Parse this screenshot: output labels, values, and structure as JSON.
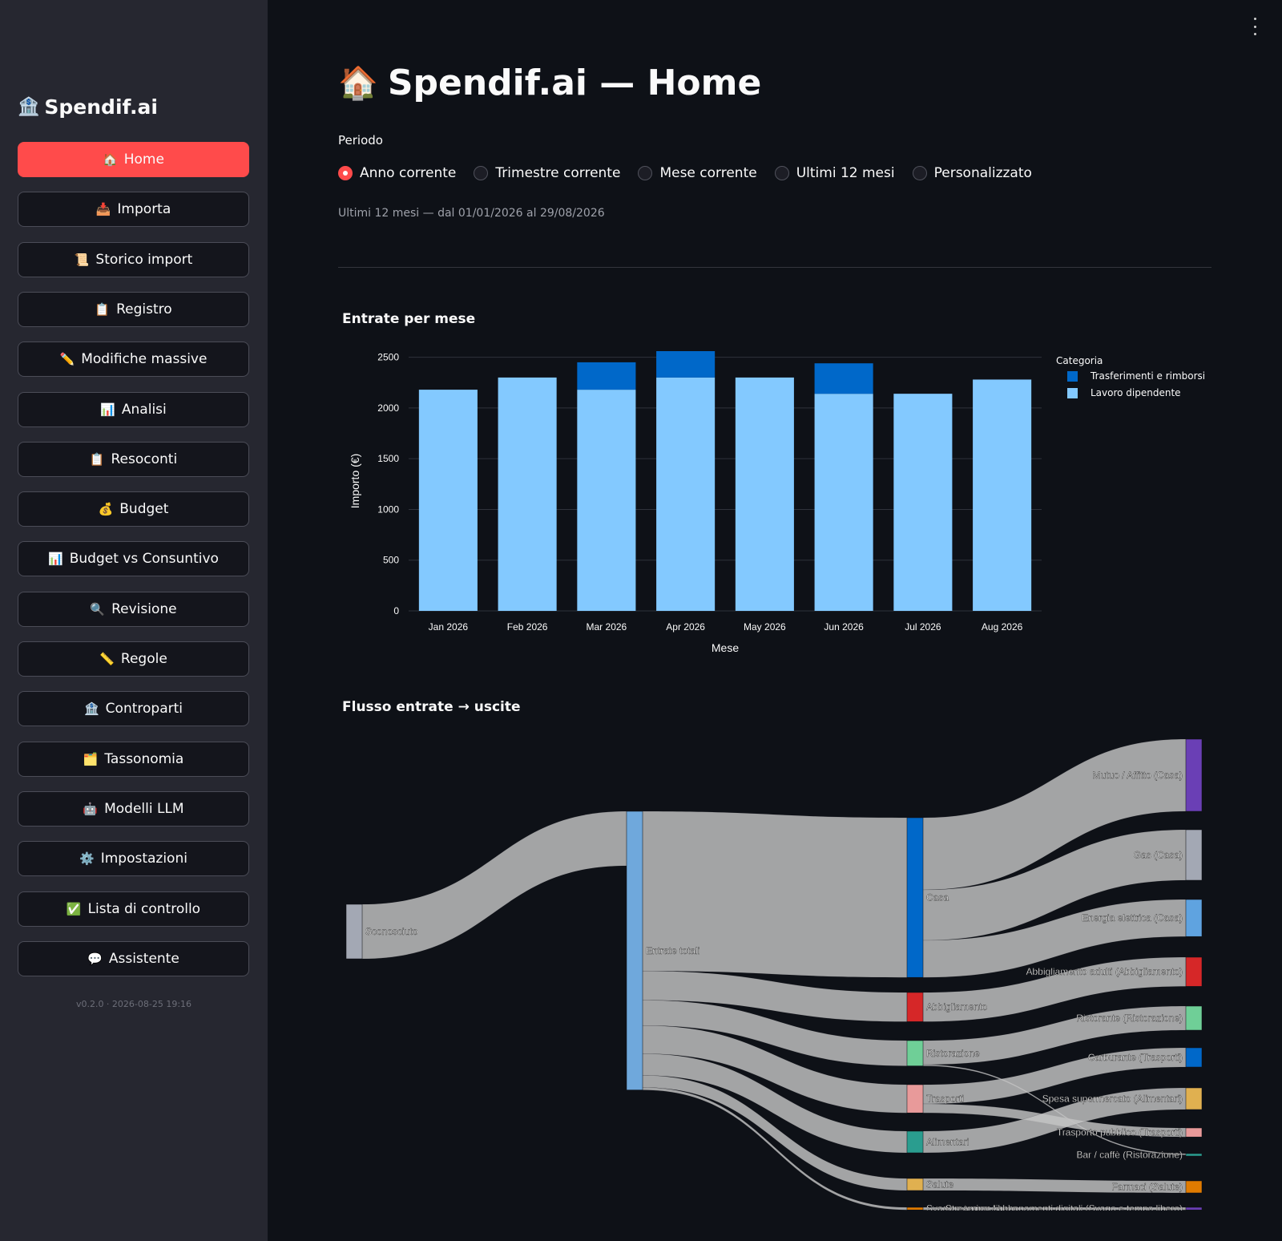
{
  "sidebar": {
    "brand": {
      "icon": "🏦",
      "title": "Spendif.ai"
    },
    "items": [
      {
        "icon": "🏠",
        "label": "Home",
        "active": true
      },
      {
        "icon": "📥",
        "label": "Importa"
      },
      {
        "icon": "📜",
        "label": "Storico import"
      },
      {
        "icon": "📋",
        "label": "Registro"
      },
      {
        "icon": "✏️",
        "label": "Modifiche massive"
      },
      {
        "icon": "📊",
        "label": "Analisi"
      },
      {
        "icon": "📋",
        "label": "Resoconti"
      },
      {
        "icon": "💰",
        "label": "Budget"
      },
      {
        "icon": "📊",
        "label": "Budget vs Consuntivo"
      },
      {
        "icon": "🔍",
        "label": "Revisione"
      },
      {
        "icon": "📏",
        "label": "Regole"
      },
      {
        "icon": "🏦",
        "label": "Controparti"
      },
      {
        "icon": "🗂️",
        "label": "Tassonomia"
      },
      {
        "icon": "🤖",
        "label": "Modelli LLM"
      },
      {
        "icon": "⚙️",
        "label": "Impostazioni"
      },
      {
        "icon": "✅",
        "label": "Lista di controllo"
      },
      {
        "icon": "💬",
        "label": "Assistente"
      }
    ],
    "version": "v0.2.0 · 2026-08-25 19:16"
  },
  "header": {
    "icon": "🏠",
    "title": "Spendif.ai — Home"
  },
  "periodo": {
    "label": "Periodo",
    "options": [
      "Anno corrente",
      "Trimestre corrente",
      "Mese corrente",
      "Ultimi 12 mesi",
      "Personalizzato"
    ],
    "selected": "Anno corrente",
    "caption": "Ultimi 12 mesi — dal 01/01/2026 al 29/08/2026"
  },
  "income_chart": {
    "section_title": "Entrate per mese",
    "chart_data": {
      "type": "bar",
      "stacked": true,
      "categories": [
        "Jan 2026",
        "Feb 2026",
        "Mar 2026",
        "Apr 2026",
        "May 2026",
        "Jun 2026",
        "Jul 2026",
        "Aug 2026"
      ],
      "series": [
        {
          "name": "Lavoro dipendente",
          "color": "#83c9ff",
          "values": [
            2180,
            2300,
            2180,
            2300,
            2300,
            2140,
            2140,
            2280
          ]
        },
        {
          "name": "Trasferimenti e rimborsi",
          "color": "#0068c9",
          "values": [
            0,
            0,
            270,
            260,
            0,
            300,
            0,
            0
          ]
        }
      ],
      "xlabel": "Mese",
      "ylabel": "Importo (€)",
      "yticks": [
        0,
        500,
        1000,
        1500,
        2000,
        2500
      ],
      "ylim": [
        0,
        2560
      ],
      "legend_title": "Categoria",
      "legend_order": [
        "Trasferimenti e rimborsi",
        "Lavoro dipendente"
      ],
      "legend_position": "top-right",
      "grid": true
    }
  },
  "flow_chart": {
    "section_title": "Flusso entrate → uscite",
    "chart_data": {
      "type": "sankey",
      "nodes": [
        {
          "id": "sconosciuto",
          "label": "Sconosciuto",
          "color": "#a3a8b4"
        },
        {
          "id": "entrate",
          "label": "Entrate totali",
          "color": "#6fa8dc"
        },
        {
          "id": "casa",
          "label": "Casa",
          "color": "#0068c9"
        },
        {
          "id": "abbigliamento",
          "label": "Abbigliamento",
          "color": "#d62728"
        },
        {
          "id": "ristorazione",
          "label": "Ristorazione",
          "color": "#6fcf97"
        },
        {
          "id": "trasporti",
          "label": "Trasporti",
          "color": "#e89a9a"
        },
        {
          "id": "alimentari",
          "label": "Alimentari",
          "color": "#2a9d8f"
        },
        {
          "id": "salute",
          "label": "Salute",
          "color": "#e0b050"
        },
        {
          "id": "svago",
          "label": "Svago e tempo libero",
          "color": "#e07b00"
        },
        {
          "id": "mutuo",
          "label": "Mutuo / Affitto (Casa)",
          "color": "#6a3fb5"
        },
        {
          "id": "gas",
          "label": "Gas (Casa)",
          "color": "#a3a8b4"
        },
        {
          "id": "energia",
          "label": "Energia elettrica (Casa)",
          "color": "#5fa3e0"
        },
        {
          "id": "abb_adulti",
          "label": "Abbigliamento adulti (Abbigliamento)",
          "color": "#d62728"
        },
        {
          "id": "ristorante",
          "label": "Ristorante (Ristorazione)",
          "color": "#6fcf97"
        },
        {
          "id": "carburante",
          "label": "Carburante (Trasporti)",
          "color": "#0068c9"
        },
        {
          "id": "spesa",
          "label": "Spesa supermercato (Alimentari)",
          "color": "#e0b050"
        },
        {
          "id": "trasp_pubblico",
          "label": "Trasporto pubblico (Trasporti)",
          "color": "#e89a9a"
        },
        {
          "id": "bar",
          "label": "Bar / caffè (Ristorazione)",
          "color": "#2a9d8f"
        },
        {
          "id": "farmaci",
          "label": "Farmaci (Salute)",
          "color": "#e07b00"
        },
        {
          "id": "streaming",
          "label": "Streaming / abbonamenti digitali (Svago e tempo libero)",
          "color": "#6a3fb5"
        }
      ],
      "links": [
        {
          "source": "sconosciuto",
          "target": "entrate",
          "value": 340
        },
        {
          "source": "entrate",
          "target": "casa",
          "value": 996
        },
        {
          "source": "entrate",
          "target": "abbigliamento",
          "value": 182
        },
        {
          "source": "entrate",
          "target": "ristorazione",
          "value": 158
        },
        {
          "source": "entrate",
          "target": "trasporti",
          "value": 176
        },
        {
          "source": "entrate",
          "target": "alimentari",
          "value": 135
        },
        {
          "source": "entrate",
          "target": "salute",
          "value": 75
        },
        {
          "source": "entrate",
          "target": "svago",
          "value": 16
        },
        {
          "source": "casa",
          "target": "mutuo",
          "value": 450
        },
        {
          "source": "casa",
          "target": "gas",
          "value": 315
        },
        {
          "source": "casa",
          "target": "energia",
          "value": 231
        },
        {
          "source": "abbigliamento",
          "target": "abb_adulti",
          "value": 182
        },
        {
          "source": "ristorazione",
          "target": "ristorante",
          "value": 150
        },
        {
          "source": "ristorazione",
          "target": "bar",
          "value": 8
        },
        {
          "source": "trasporti",
          "target": "carburante",
          "value": 120
        },
        {
          "source": "trasporti",
          "target": "trasp_pubblico",
          "value": 56
        },
        {
          "source": "alimentari",
          "target": "spesa",
          "value": 135
        },
        {
          "source": "salute",
          "target": "farmaci",
          "value": 75
        },
        {
          "source": "svago",
          "target": "streaming",
          "value": 16
        }
      ]
    }
  }
}
